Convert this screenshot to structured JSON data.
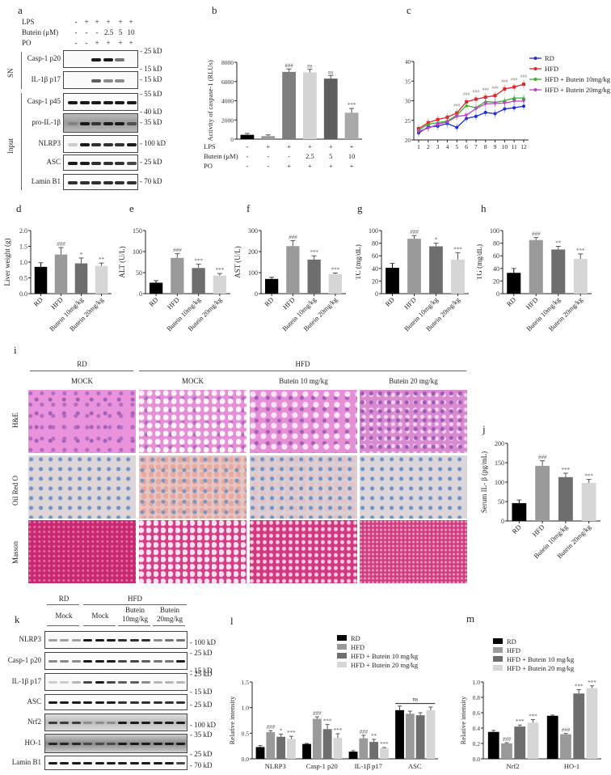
{
  "panels": {
    "a": {
      "label": "a",
      "conditions": {
        "rows": [
          {
            "name": "LPS",
            "values": [
              "-",
              "+",
              "+",
              "+",
              "+",
              "+"
            ]
          },
          {
            "name": "Butein (μM)",
            "values": [
              "-",
              "-",
              "-",
              "2.5",
              "5",
              "10"
            ]
          },
          {
            "name": "PO",
            "values": [
              "-",
              "-",
              "+",
              "+",
              "+",
              "+"
            ]
          }
        ]
      },
      "groups": [
        {
          "name": "SN"
        },
        {
          "name": "Input"
        }
      ],
      "blots": [
        {
          "name": "Casp-1 p20",
          "markers": [
            "25 kD",
            "15 kD"
          ]
        },
        {
          "name": "IL-1β p17",
          "markers": [
            "15 kD"
          ]
        },
        {
          "name": "Casp-1 p45",
          "markers": [
            "55 kD",
            "40 kD"
          ]
        },
        {
          "name": "pro-IL-1β",
          "markers": [
            "35 kD"
          ]
        },
        {
          "name": "NLRP3",
          "markers": [
            "100 kD"
          ]
        },
        {
          "name": "ASC",
          "markers": [
            "25 kD"
          ]
        },
        {
          "name": "Lamin B1",
          "markers": [
            "70 kD"
          ]
        }
      ]
    },
    "b": {
      "label": "b"
    },
    "c": {
      "label": "c"
    },
    "d": {
      "label": "d"
    },
    "e": {
      "label": "e"
    },
    "f": {
      "label": "f"
    },
    "g": {
      "label": "g"
    },
    "h": {
      "label": "h"
    },
    "i": {
      "label": "i",
      "group_headers": [
        "RD",
        "HFD"
      ],
      "column_headers": [
        "MOCK",
        "MOCK",
        "Butein 10 mg/kg",
        "Butein 20 mg/kg"
      ],
      "row_labels": [
        "H&E",
        "Oil Red O",
        "Masson"
      ]
    },
    "j": {
      "label": "j"
    },
    "k": {
      "label": "k",
      "group_headers": [
        "RD",
        "HFD"
      ],
      "subheaders": [
        "Mock",
        "Mock",
        "Butein\n10mg/kg",
        "Butein\n20mg/kg"
      ],
      "subheader_lines": [
        [
          "Mock"
        ],
        [
          "Mock"
        ],
        [
          "Butein",
          "10mg/kg"
        ],
        [
          "Butein",
          "20mg/kg"
        ]
      ],
      "blots": [
        {
          "name": "NLRP3",
          "markers": [
            "100 kD"
          ]
        },
        {
          "name": "Casp-1 p20",
          "markers": [
            "25 kD",
            "15 kD"
          ]
        },
        {
          "name": "IL-1β p17",
          "markers": [
            "25 kD",
            "15 kD"
          ]
        },
        {
          "name": "ASC",
          "markers": [
            "25 kD"
          ]
        },
        {
          "name": "Nrf2",
          "markers": [
            "100 kD"
          ]
        },
        {
          "name": "HO-1",
          "markers": [
            "35 kD",
            "25 kD"
          ]
        },
        {
          "name": "Lamin B1",
          "markers": [
            "70 kD"
          ]
        }
      ]
    },
    "l": {
      "label": "l"
    },
    "m": {
      "label": "m"
    }
  },
  "colors": {
    "RD": "#000000",
    "HFD": "#9a9a9a",
    "Butein10": "#6e6e6e",
    "Butein20": "#d6d6d6",
    "line_RD": "#1f2fd6",
    "line_HFD": "#e0242a",
    "line_B10": "#2fb52a",
    "line_B20": "#c23fc9"
  },
  "chart_data": [
    {
      "panel": "b",
      "type": "bar",
      "title": "",
      "ylabel": "Activity of caspase-1 (RLUs)",
      "xlabel": "",
      "ylim": [
        0,
        8000
      ],
      "yticks": [
        0,
        2000,
        4000,
        6000,
        8000
      ],
      "categories": [
        "1",
        "2",
        "3",
        "4",
        "5",
        "6"
      ],
      "condition_rows": [
        {
          "name": "LPS",
          "values": [
            "-",
            "+",
            "+",
            "+",
            "+",
            "+"
          ]
        },
        {
          "name": "Butein (μM)",
          "values": [
            "-",
            "-",
            "-",
            "2.5",
            "5",
            "10"
          ]
        },
        {
          "name": "PO",
          "values": [
            "-",
            "-",
            "+",
            "+",
            "+",
            "+"
          ]
        }
      ],
      "values": [
        450,
        320,
        7000,
        6950,
        6300,
        2750
      ],
      "errors": [
        150,
        120,
        300,
        320,
        330,
        450
      ],
      "bar_colors": [
        "#000000",
        "#9a9a9a",
        "#7e7e7e",
        "#d4d4d4",
        "#5e5e5e",
        "#a8a8a8"
      ],
      "annotations": [
        "",
        "",
        "###",
        "ns",
        "ns",
        "***"
      ]
    },
    {
      "panel": "c",
      "type": "line",
      "ylabel": "Body weight (g)",
      "xlabel": "",
      "ylim": [
        20,
        40
      ],
      "yticks": [
        20,
        25,
        30,
        35,
        40
      ],
      "x": [
        1,
        2,
        3,
        4,
        5,
        6,
        7,
        8,
        9,
        10,
        11,
        12
      ],
      "legend_position": "right",
      "series": [
        {
          "name": "RD",
          "values": [
            21.8,
            23.3,
            23.5,
            24.2,
            23.2,
            25.5,
            26.0,
            27.0,
            26.7,
            27.9,
            28.2,
            28.6
          ]
        },
        {
          "name": "HFD",
          "values": [
            22.9,
            24.4,
            25.2,
            25.8,
            26.9,
            29.7,
            30.4,
            30.9,
            31.3,
            33.0,
            33.5,
            34.2
          ]
        },
        {
          "name": "HFD + Butein 10mg/kg",
          "values": [
            22.5,
            24.0,
            24.4,
            24.8,
            26.3,
            28.8,
            28.2,
            29.8,
            29.6,
            30.0,
            30.7,
            30.7
          ]
        },
        {
          "name": "HFD + Butein 20mg/kg",
          "values": [
            22.2,
            23.0,
            24.0,
            24.6,
            26.0,
            26.3,
            28.0,
            29.2,
            29.3,
            29.4,
            29.9,
            29.9
          ]
        }
      ],
      "annotations_hfd": [
        "",
        "",
        "",
        "",
        "###",
        "###",
        "###",
        "###",
        "###",
        "###",
        "###",
        "###"
      ]
    },
    {
      "panel": "d",
      "type": "bar",
      "ylabel": "Liver weight (g)",
      "ylim": [
        0,
        2.0
      ],
      "yticks": [
        "0.0",
        "0.5",
        "1.0",
        "1.5",
        "2.0"
      ],
      "categories": [
        "RD",
        "HFD",
        "Butein 10mg/kg",
        "Butein 20mg/kg"
      ],
      "values": [
        0.85,
        1.24,
        0.96,
        0.88
      ],
      "errors": [
        0.13,
        0.22,
        0.17,
        0.09
      ],
      "annotations": [
        "",
        "###",
        "*",
        "**"
      ]
    },
    {
      "panel": "e",
      "type": "bar",
      "ylabel": "ALT (U/L)",
      "ylim": [
        0,
        150
      ],
      "yticks": [
        "0",
        "50",
        "100",
        "150"
      ],
      "categories": [
        "RD",
        "HFD",
        "Butein 10mg/kg",
        "Butein 20mg/kg"
      ],
      "values": [
        26,
        85,
        61,
        43
      ],
      "errors": [
        5,
        10,
        9,
        5
      ],
      "annotations": [
        "",
        "###",
        "***",
        "***"
      ]
    },
    {
      "panel": "f",
      "type": "bar",
      "ylabel": "AST (U/L)",
      "ylim": [
        0,
        300
      ],
      "yticks": [
        "0",
        "100",
        "200",
        "300"
      ],
      "categories": [
        "RD",
        "HFD",
        "Butein 10mg/kg",
        "Butein 20mg/kg"
      ],
      "values": [
        70,
        226,
        162,
        93
      ],
      "errors": [
        8,
        26,
        18,
        5
      ],
      "annotations": [
        "",
        "###",
        "***",
        "***"
      ]
    },
    {
      "panel": "g",
      "type": "bar",
      "ylabel": "TC (mg/dL)",
      "ylim": [
        0,
        100
      ],
      "yticks": [
        "0",
        "20",
        "40",
        "60",
        "80",
        "100"
      ],
      "categories": [
        "RD",
        "HFD",
        "Butein 10mg/kg",
        "Butein 20mg/kg"
      ],
      "values": [
        41,
        87,
        75,
        54
      ],
      "errors": [
        7,
        5,
        5,
        11
      ],
      "annotations": [
        "",
        "###",
        "*",
        "***"
      ]
    },
    {
      "panel": "h",
      "type": "bar",
      "ylabel": "TG (mg/dL)",
      "ylim": [
        0,
        100
      ],
      "yticks": [
        "0",
        "20",
        "40",
        "60",
        "80",
        "100"
      ],
      "categories": [
        "RD",
        "HFD",
        "Butein 10mg/kg",
        "Butein 20mg/kg"
      ],
      "values": [
        33,
        85,
        70,
        55
      ],
      "errors": [
        7,
        4,
        5,
        8
      ],
      "annotations": [
        "",
        "###",
        "**",
        "***"
      ]
    },
    {
      "panel": "j",
      "type": "bar",
      "ylabel": "Serum IL- β (pg/mL)",
      "ylim": [
        0,
        200
      ],
      "yticks": [
        "0",
        "50",
        "100",
        "150",
        "200"
      ],
      "categories": [
        "RD",
        "HFD",
        "Butein 10mg/kg",
        "Butein 20mg/kg"
      ],
      "values": [
        46,
        142,
        113,
        98
      ],
      "errors": [
        8,
        13,
        10,
        9
      ],
      "annotations": [
        "",
        "###",
        "***",
        "***"
      ]
    },
    {
      "panel": "l",
      "type": "bar",
      "ylabel": "Relative intensity",
      "ylim": [
        0,
        1.5
      ],
      "yticks": [
        "0.0",
        "0.5",
        "1.0",
        "1.5"
      ],
      "categories": [
        "NLRP3",
        "Casp-1 p20",
        "IL-1β p17",
        "ASC"
      ],
      "legend_position": "top",
      "series": [
        {
          "name": "RD",
          "values": [
            0.23,
            0.29,
            0.14,
            0.95
          ],
          "errors": [
            0.03,
            0.01,
            0.02,
            0.08
          ]
        },
        {
          "name": "HFD",
          "values": [
            0.52,
            0.78,
            0.4,
            0.88
          ],
          "errors": [
            0.03,
            0.04,
            0.06,
            0.05
          ]
        },
        {
          "name": "HFD + Butein 10 mg/kg",
          "values": [
            0.43,
            0.58,
            0.33,
            0.85
          ],
          "errors": [
            0.05,
            0.09,
            0.05,
            0.05
          ]
        },
        {
          "name": "HFD + Butein 20 mg/kg",
          "values": [
            0.39,
            0.41,
            0.21,
            0.95
          ],
          "errors": [
            0.05,
            0.08,
            0.01,
            0.06
          ]
        }
      ],
      "annotations": [
        [
          "",
          "###",
          "*",
          "***"
        ],
        [
          "",
          "###",
          "***",
          "***"
        ],
        [
          "",
          "###",
          "**",
          "***"
        ],
        [
          "",
          "",
          "",
          ""
        ]
      ],
      "group_annotation": {
        "category": "ASC",
        "text": "ns"
      }
    },
    {
      "panel": "m",
      "type": "bar",
      "ylabel": "Relative intensity",
      "ylim": [
        0,
        1.0
      ],
      "yticks": [
        "0.0",
        "0.2",
        "0.4",
        "0.6",
        "0.8",
        "1.0"
      ],
      "categories": [
        "Nrf2",
        "HO-1"
      ],
      "legend_position": "top",
      "series": [
        {
          "name": "RD",
          "values": [
            0.35,
            0.56
          ],
          "errors": [
            0.02,
            0.01
          ]
        },
        {
          "name": "HFD",
          "values": [
            0.2,
            0.32
          ],
          "errors": [
            0.01,
            0.01
          ]
        },
        {
          "name": "HFD + Butein 10 mg/kg",
          "values": [
            0.42,
            0.85
          ],
          "errors": [
            0.02,
            0.05
          ]
        },
        {
          "name": "HFD + Butein 20 mg/kg",
          "values": [
            0.47,
            0.92
          ],
          "errors": [
            0.04,
            0.03
          ]
        }
      ],
      "annotations": [
        [
          "",
          "###",
          "***",
          "***"
        ],
        [
          "",
          "###",
          "***",
          "***"
        ]
      ]
    }
  ]
}
